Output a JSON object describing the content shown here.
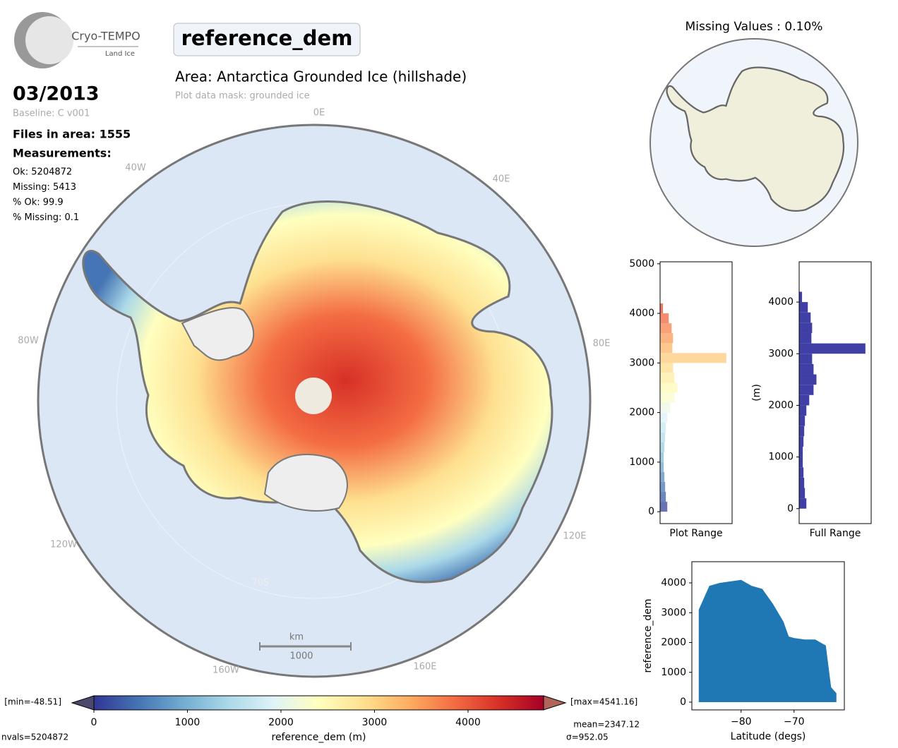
{
  "logo": {
    "name": "Cryo-TEMPO",
    "subtitle": "Land Ice"
  },
  "title": "reference_dem",
  "area": "Area: Antarctica Grounded Ice (hillshade)",
  "mask": "Plot data mask: grounded ice",
  "date": "03/2013",
  "baseline": "Baseline: C v001",
  "files": "Files in area: 1555",
  "measurements": "Measurements:",
  "stats": [
    "Ok: 5204872",
    "Missing: 5413",
    "% Ok: 99.9",
    "% Missing: 0.1"
  ],
  "map": {
    "lon_labels": [
      "0E",
      "40E",
      "80E",
      "120E",
      "160E",
      "160W",
      "120W",
      "80W",
      "40W"
    ],
    "lat_labels": [
      "80S",
      "70S"
    ],
    "scale_unit": "km",
    "scale_value": "1000"
  },
  "missing_map": {
    "title": "Missing Values : 0.10%"
  },
  "chart_data": [
    {
      "type": "histogram",
      "xlabel": "Plot Range",
      "bins": [
        0,
        200,
        400,
        600,
        800,
        1000,
        1200,
        1400,
        1600,
        1800,
        2000,
        2200,
        2400,
        2600,
        2800,
        3000,
        3200,
        3400,
        3600,
        3800,
        4000,
        4200
      ],
      "counts": [
        10,
        8,
        7,
        6,
        5,
        5,
        6,
        7,
        8,
        10,
        14,
        20,
        24,
        20,
        18,
        92,
        17,
        18,
        16,
        12,
        4
      ],
      "xlim": [
        0,
        100
      ],
      "ylim": [
        -240,
        5040
      ],
      "yticks": [
        0,
        1000,
        2000,
        3000,
        4000,
        5000
      ]
    },
    {
      "type": "histogram",
      "xlabel": "Full Range",
      "ylabel": "(m)",
      "color": "#3f3fa6",
      "bins": [
        0,
        200,
        400,
        600,
        800,
        1000,
        1200,
        1400,
        1600,
        1800,
        2000,
        2200,
        2400,
        2600,
        2800,
        3000,
        3200,
        3400,
        3600,
        3800,
        4000,
        4200
      ],
      "counts": [
        10,
        8,
        7,
        6,
        5,
        5,
        6,
        7,
        8,
        10,
        14,
        20,
        24,
        20,
        18,
        92,
        17,
        18,
        16,
        12,
        4
      ],
      "xlim": [
        0,
        100
      ],
      "ylim": [
        -290,
        4780
      ],
      "yticks": [
        0,
        1000,
        2000,
        3000,
        4000
      ]
    },
    {
      "type": "area",
      "xlabel": "Latitude (degs)",
      "ylabel": "reference_dem",
      "color": "#1f77b4",
      "x": [
        -88,
        -86,
        -84,
        -82,
        -80,
        -78,
        -76,
        -74,
        -72,
        -71,
        -70,
        -68,
        -66,
        -64,
        -63,
        -62
      ],
      "values": [
        3100,
        3900,
        4000,
        4050,
        4100,
        3900,
        3800,
        3300,
        2700,
        2200,
        2150,
        2100,
        2100,
        1900,
        500,
        300
      ],
      "xlim": [
        -89.3,
        -60.5
      ],
      "ylim": [
        -260,
        4710
      ],
      "xticks": [
        {
          "value": -80,
          "label": "−80"
        },
        {
          "value": -70,
          "label": "−70"
        }
      ],
      "yticks": [
        0,
        1000,
        2000,
        3000,
        4000
      ]
    },
    {
      "type": "colorbar",
      "xlabel": "reference_dem (m)",
      "colors": [
        "#313695",
        "#4575b4",
        "#74add1",
        "#abd9e9",
        "#e0f3f8",
        "#ffffbf",
        "#fee090",
        "#fdae61",
        "#f46d43",
        "#d73027",
        "#a50026"
      ],
      "xlim": [
        0,
        4808
      ],
      "xticks": [
        0,
        1000,
        2000,
        3000,
        4000
      ],
      "min_label": "[min=-48.51]",
      "max_label": "[max=4541.16]",
      "nvals": "nvals=5204872",
      "mean": "mean=2347.12",
      "sigma": "σ=952.05"
    }
  ]
}
